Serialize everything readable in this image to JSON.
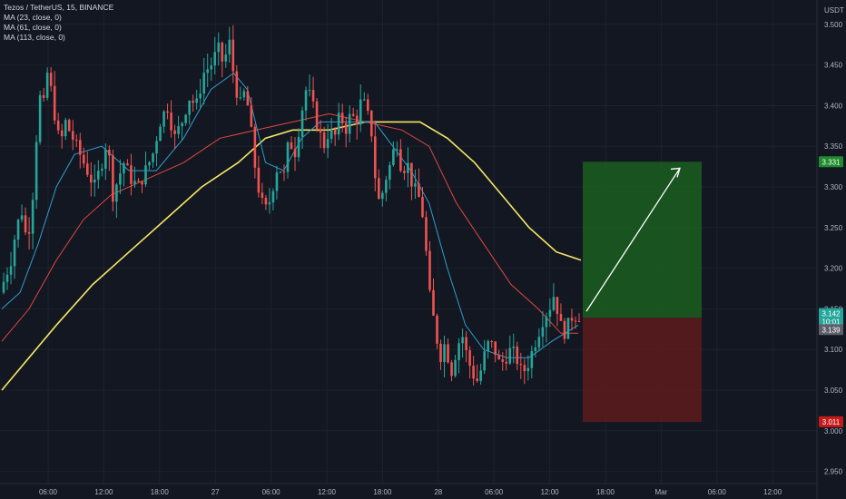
{
  "legend": {
    "symbol": "Tezos / TetherUS, 15, BINANCE",
    "ma1": "MA (23, close, 0)",
    "ma2": "MA (61, close, 0)",
    "ma3": "MA (113, close, 0)"
  },
  "currency": "USDT",
  "colors": {
    "background": "#131722",
    "grid": "#1e222d",
    "up": "#26a69a",
    "down": "#ef5350",
    "ma23": "#2f9ecf",
    "ma61": "#e0483f",
    "ma113": "#f5e663",
    "target_zone": "#1b5e20",
    "stop_zone": "#5b1b1e",
    "arrow": "#ffffff"
  },
  "tags": {
    "target": "3.331",
    "stop": "3.011",
    "last_price": "3.142",
    "countdown": "10:01",
    "entry": "3.139"
  },
  "chart_data": {
    "type": "candlestick",
    "title": "Tezos / TetherUS, 15, BINANCE",
    "ylim": [
      2.935,
      3.53
    ],
    "y_ticks": [
      "2.950",
      "3.000",
      "3.050",
      "3.100",
      "3.150",
      "3.200",
      "3.250",
      "3.300",
      "3.350",
      "3.400",
      "3.450",
      "3.500"
    ],
    "x_ticks": [
      "06:00",
      "12:00",
      "18:00",
      "27",
      "06:00",
      "12:00",
      "18:00",
      "28",
      "06:00",
      "12:00",
      "18:00",
      "Mar",
      "06:00",
      "12:00"
    ],
    "grid": true,
    "price_series": [
      {
        "t": 0,
        "v": 3.17
      },
      {
        "t": 6,
        "v": 3.19
      },
      {
        "t": 12,
        "v": 3.21
      },
      {
        "t": 18,
        "v": 3.25
      },
      {
        "t": 24,
        "v": 3.27
      },
      {
        "t": 30,
        "v": 3.23
      },
      {
        "t": 36,
        "v": 3.29
      },
      {
        "t": 40,
        "v": 3.36
      },
      {
        "t": 44,
        "v": 3.41
      },
      {
        "t": 48,
        "v": 3.4
      },
      {
        "t": 52,
        "v": 3.44
      },
      {
        "t": 56,
        "v": 3.42
      },
      {
        "t": 60,
        "v": 3.39
      },
      {
        "t": 66,
        "v": 3.35
      },
      {
        "t": 72,
        "v": 3.38
      },
      {
        "t": 80,
        "v": 3.36
      },
      {
        "t": 88,
        "v": 3.34
      },
      {
        "t": 96,
        "v": 3.32
      },
      {
        "t": 104,
        "v": 3.3
      },
      {
        "t": 112,
        "v": 3.33
      },
      {
        "t": 118,
        "v": 3.36
      },
      {
        "t": 124,
        "v": 3.29
      },
      {
        "t": 130,
        "v": 3.31
      },
      {
        "t": 136,
        "v": 3.33
      },
      {
        "t": 144,
        "v": 3.31
      },
      {
        "t": 152,
        "v": 3.3
      },
      {
        "t": 160,
        "v": 3.32
      },
      {
        "t": 168,
        "v": 3.34
      },
      {
        "t": 176,
        "v": 3.38
      },
      {
        "t": 184,
        "v": 3.4
      },
      {
        "t": 192,
        "v": 3.36
      },
      {
        "t": 200,
        "v": 3.38
      },
      {
        "t": 208,
        "v": 3.41
      },
      {
        "t": 216,
        "v": 3.4
      },
      {
        "t": 224,
        "v": 3.44
      },
      {
        "t": 232,
        "v": 3.45
      },
      {
        "t": 240,
        "v": 3.47
      },
      {
        "t": 246,
        "v": 3.45
      },
      {
        "t": 252,
        "v": 3.48
      },
      {
        "t": 258,
        "v": 3.43
      },
      {
        "t": 264,
        "v": 3.4
      },
      {
        "t": 270,
        "v": 3.42
      },
      {
        "t": 276,
        "v": 3.37
      },
      {
        "t": 282,
        "v": 3.31
      },
      {
        "t": 288,
        "v": 3.28
      },
      {
        "t": 294,
        "v": 3.27
      },
      {
        "t": 300,
        "v": 3.3
      },
      {
        "t": 306,
        "v": 3.33
      },
      {
        "t": 312,
        "v": 3.31
      },
      {
        "t": 318,
        "v": 3.36
      },
      {
        "t": 324,
        "v": 3.34
      },
      {
        "t": 330,
        "v": 3.38
      },
      {
        "t": 336,
        "v": 3.42
      },
      {
        "t": 342,
        "v": 3.41
      },
      {
        "t": 348,
        "v": 3.38
      },
      {
        "t": 356,
        "v": 3.35
      },
      {
        "t": 362,
        "v": 3.37
      },
      {
        "t": 368,
        "v": 3.36
      },
      {
        "t": 374,
        "v": 3.39
      },
      {
        "t": 380,
        "v": 3.37
      },
      {
        "t": 386,
        "v": 3.39
      },
      {
        "t": 392,
        "v": 3.38
      },
      {
        "t": 398,
        "v": 3.41
      },
      {
        "t": 404,
        "v": 3.39
      },
      {
        "t": 410,
        "v": 3.36
      },
      {
        "t": 414,
        "v": 3.29
      },
      {
        "t": 418,
        "v": 3.28
      },
      {
        "t": 424,
        "v": 3.31
      },
      {
        "t": 430,
        "v": 3.33
      },
      {
        "t": 436,
        "v": 3.36
      },
      {
        "t": 442,
        "v": 3.32
      },
      {
        "t": 448,
        "v": 3.33
      },
      {
        "t": 454,
        "v": 3.3
      },
      {
        "t": 460,
        "v": 3.29
      },
      {
        "t": 466,
        "v": 3.26
      },
      {
        "t": 472,
        "v": 3.17
      },
      {
        "t": 478,
        "v": 3.13
      },
      {
        "t": 484,
        "v": 3.09
      },
      {
        "t": 490,
        "v": 3.11
      },
      {
        "t": 496,
        "v": 3.07
      },
      {
        "t": 502,
        "v": 3.1
      },
      {
        "t": 508,
        "v": 3.12
      },
      {
        "t": 514,
        "v": 3.09
      },
      {
        "t": 520,
        "v": 3.07
      },
      {
        "t": 526,
        "v": 3.06
      },
      {
        "t": 532,
        "v": 3.09
      },
      {
        "t": 538,
        "v": 3.11
      },
      {
        "t": 544,
        "v": 3.1
      },
      {
        "t": 550,
        "v": 3.08
      },
      {
        "t": 556,
        "v": 3.09
      },
      {
        "t": 562,
        "v": 3.1
      },
      {
        "t": 568,
        "v": 3.09
      },
      {
        "t": 574,
        "v": 3.07
      },
      {
        "t": 580,
        "v": 3.08
      },
      {
        "t": 586,
        "v": 3.1
      },
      {
        "t": 592,
        "v": 3.12
      },
      {
        "t": 598,
        "v": 3.14
      },
      {
        "t": 604,
        "v": 3.15
      },
      {
        "t": 610,
        "v": 3.17
      },
      {
        "t": 616,
        "v": 3.13
      },
      {
        "t": 622,
        "v": 3.12
      },
      {
        "t": 628,
        "v": 3.14
      },
      {
        "t": 634,
        "v": 3.142
      }
    ],
    "ma23": [
      {
        "t": 0,
        "v": 3.15
      },
      {
        "t": 20,
        "v": 3.17
      },
      {
        "t": 40,
        "v": 3.23
      },
      {
        "t": 60,
        "v": 3.3
      },
      {
        "t": 80,
        "v": 3.34
      },
      {
        "t": 110,
        "v": 3.35
      },
      {
        "t": 140,
        "v": 3.32
      },
      {
        "t": 170,
        "v": 3.32
      },
      {
        "t": 200,
        "v": 3.36
      },
      {
        "t": 230,
        "v": 3.42
      },
      {
        "t": 255,
        "v": 3.44
      },
      {
        "t": 270,
        "v": 3.42
      },
      {
        "t": 290,
        "v": 3.33
      },
      {
        "t": 310,
        "v": 3.32
      },
      {
        "t": 330,
        "v": 3.36
      },
      {
        "t": 350,
        "v": 3.38
      },
      {
        "t": 380,
        "v": 3.38
      },
      {
        "t": 410,
        "v": 3.38
      },
      {
        "t": 430,
        "v": 3.35
      },
      {
        "t": 450,
        "v": 3.32
      },
      {
        "t": 470,
        "v": 3.28
      },
      {
        "t": 490,
        "v": 3.2
      },
      {
        "t": 510,
        "v": 3.13
      },
      {
        "t": 530,
        "v": 3.1
      },
      {
        "t": 555,
        "v": 3.09
      },
      {
        "t": 580,
        "v": 3.09
      },
      {
        "t": 605,
        "v": 3.11
      },
      {
        "t": 634,
        "v": 3.13
      }
    ],
    "ma61": [
      {
        "t": 0,
        "v": 3.11
      },
      {
        "t": 30,
        "v": 3.15
      },
      {
        "t": 60,
        "v": 3.21
      },
      {
        "t": 90,
        "v": 3.26
      },
      {
        "t": 120,
        "v": 3.29
      },
      {
        "t": 160,
        "v": 3.31
      },
      {
        "t": 200,
        "v": 3.33
      },
      {
        "t": 240,
        "v": 3.36
      },
      {
        "t": 280,
        "v": 3.37
      },
      {
        "t": 320,
        "v": 3.38
      },
      {
        "t": 360,
        "v": 3.39
      },
      {
        "t": 400,
        "v": 3.38
      },
      {
        "t": 440,
        "v": 3.37
      },
      {
        "t": 470,
        "v": 3.35
      },
      {
        "t": 500,
        "v": 3.28
      },
      {
        "t": 530,
        "v": 3.23
      },
      {
        "t": 560,
        "v": 3.18
      },
      {
        "t": 590,
        "v": 3.15
      },
      {
        "t": 615,
        "v": 3.12
      },
      {
        "t": 634,
        "v": 3.12
      }
    ],
    "ma113": [
      {
        "t": 0,
        "v": 3.05
      },
      {
        "t": 30,
        "v": 3.09
      },
      {
        "t": 60,
        "v": 3.13
      },
      {
        "t": 100,
        "v": 3.18
      },
      {
        "t": 140,
        "v": 3.22
      },
      {
        "t": 180,
        "v": 3.26
      },
      {
        "t": 220,
        "v": 3.3
      },
      {
        "t": 260,
        "v": 3.33
      },
      {
        "t": 290,
        "v": 3.36
      },
      {
        "t": 320,
        "v": 3.37
      },
      {
        "t": 360,
        "v": 3.37
      },
      {
        "t": 400,
        "v": 3.38
      },
      {
        "t": 430,
        "v": 3.38
      },
      {
        "t": 460,
        "v": 3.38
      },
      {
        "t": 490,
        "v": 3.36
      },
      {
        "t": 520,
        "v": 3.33
      },
      {
        "t": 550,
        "v": 3.29
      },
      {
        "t": 580,
        "v": 3.25
      },
      {
        "t": 610,
        "v": 3.22
      },
      {
        "t": 637,
        "v": 3.21
      }
    ],
    "position": {
      "entry": 3.139,
      "target": 3.331,
      "stop": 3.011
    }
  }
}
